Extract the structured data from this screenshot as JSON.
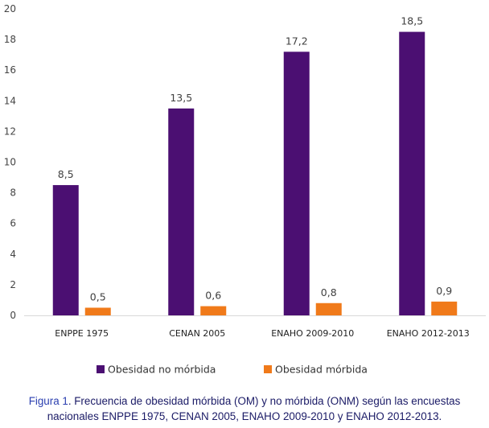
{
  "chart_data": {
    "type": "bar",
    "categories": [
      "ENPPE 1975",
      "CENAN 2005",
      "ENAHO 2009-2010",
      "ENAHO 2012-2013"
    ],
    "series": [
      {
        "name": "Obesidad no mórbida",
        "values": [
          8.5,
          13.5,
          17.2,
          18.5
        ],
        "labels": [
          "8,5",
          "13,5",
          "17,2",
          "18,5"
        ],
        "color": "#4b0f72"
      },
      {
        "name": "Obesidad mórbida",
        "values": [
          0.5,
          0.6,
          0.8,
          0.9
        ],
        "labels": [
          "0,5",
          "0,6",
          "0,8",
          "0,9"
        ],
        "color": "#f07a1a"
      }
    ],
    "ylim": [
      0,
      20
    ],
    "yticks": [
      0,
      2,
      4,
      6,
      8,
      10,
      12,
      14,
      16,
      18,
      20
    ],
    "ytick_labels": [
      "0",
      "2",
      "4",
      "6",
      "8",
      "10",
      "12",
      "14",
      "16",
      "18",
      "20"
    ],
    "grid": false,
    "legend": "bottom-center"
  },
  "caption": {
    "label": "Figura 1",
    "line1": ". Frecuencia de obesidad mórbida (OM) y no mórbida (ONM) según las encuestas",
    "line2": "nacionales ENPPE 1975, CENAN 2005, ENAHO 2009-2010 y ENAHO 2012-2013."
  }
}
